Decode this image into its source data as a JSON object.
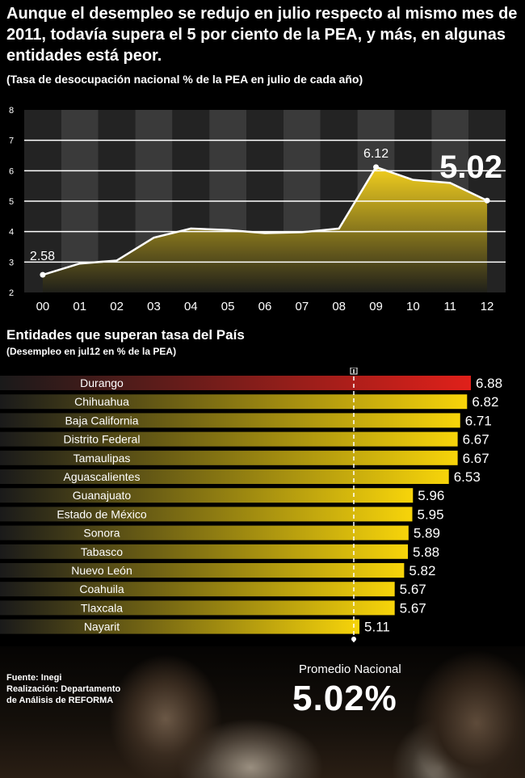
{
  "headline": "Aunque el desempleo se redujo en julio respecto al mismo mes de 2011, todavía supera el 5 por ciento de la PEA, y más, en algunas entidades está peor.",
  "subtitle": "(Tasa de desocupación nacional % de la PEA en julio de cada año)",
  "section_title": "Entidades que superan tasa del País",
  "section_subtitle": "(Desempleo en jul12 en % de la PEA)",
  "source_lines": [
    "Fuente: Inegi",
    "Realización: Departamento",
    "de Análisis de REFORMA"
  ],
  "average": {
    "label": "Promedio Nacional",
    "value_text": "5.02%",
    "value": 5.02
  },
  "colors": {
    "bar_top": "#e0201a",
    "bar_yellow": "#f7d40a",
    "area_yellow": "#f2cf1f",
    "axis_grey": "#3a3a3a"
  },
  "chart_data": [
    {
      "type": "area",
      "x": [
        "00",
        "01",
        "02",
        "03",
        "04",
        "05",
        "06",
        "07",
        "08",
        "09",
        "10",
        "11",
        "12"
      ],
      "values": [
        2.58,
        2.95,
        3.05,
        3.8,
        4.1,
        4.05,
        3.95,
        3.98,
        4.1,
        6.12,
        5.7,
        5.6,
        5.02
      ],
      "value_labels": {
        "00": "2.58",
        "09": "6.12",
        "12": "5.02"
      },
      "ylim": [
        2,
        8
      ],
      "yticks": [
        "2",
        "3",
        "4",
        "5",
        "6",
        "7",
        "8"
      ],
      "grid": true
    },
    {
      "type": "bar",
      "orientation": "horizontal",
      "categories": [
        "Durango",
        "Chihuahua",
        "Baja California",
        "Distrito Federal",
        "Tamaulipas",
        "Aguascalientes",
        "Guanajuato",
        "Estado de México",
        "Sonora",
        "Tabasco",
        "Nuevo León",
        "Coahuila",
        "Tlaxcala",
        "Nayarit"
      ],
      "values": [
        6.88,
        6.82,
        6.71,
        6.67,
        6.67,
        6.53,
        5.96,
        5.95,
        5.89,
        5.88,
        5.82,
        5.67,
        5.67,
        5.11
      ],
      "value_labels": [
        "6.88",
        "6.82",
        "6.71",
        "6.67",
        "6.67",
        "6.53",
        "5.96",
        "5.95",
        "5.89",
        "5.88",
        "5.82",
        "5.67",
        "5.67",
        "5.11"
      ],
      "reference_line": 5.02
    }
  ]
}
